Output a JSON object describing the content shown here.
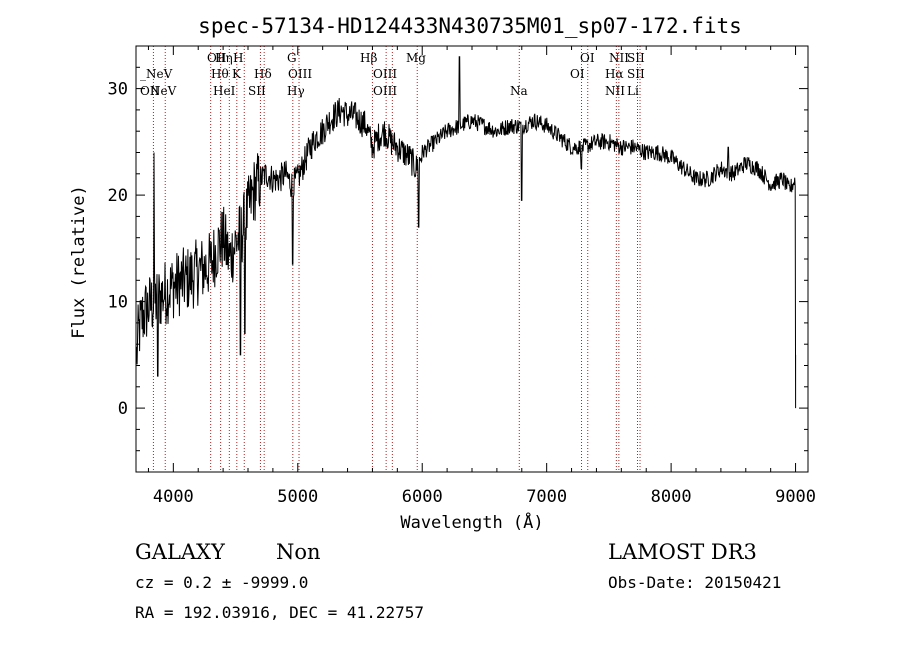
{
  "chart_data": {
    "type": "line",
    "title": "spec-57134-HD124433N430735M01_sp07-172.fits",
    "xlabel": "Wavelength (Å)",
    "ylabel": "Flux (relative)",
    "xlim": [
      3700,
      9100
    ],
    "ylim": [
      -6,
      34
    ],
    "xticks": [
      "4000",
      "5000",
      "6000",
      "7000",
      "8000",
      "9000"
    ],
    "xtick_values": [
      4000,
      5000,
      6000,
      7000,
      8000,
      9000
    ],
    "yticks": [
      "0",
      "10",
      "20",
      "30"
    ],
    "ytick_values": [
      0,
      10,
      20,
      30
    ],
    "line_color": "#000000",
    "marker_color": "#b22222",
    "spectrum_anchors": [
      [
        3700,
        4.0
      ],
      [
        3720,
        7.0
      ],
      [
        3750,
        8.5
      ],
      [
        3800,
        9.5
      ],
      [
        3850,
        10.0
      ],
      [
        3900,
        10.5
      ],
      [
        3950,
        11.0
      ],
      [
        4000,
        11.5
      ],
      [
        4100,
        12.0
      ],
      [
        4200,
        12.8
      ],
      [
        4300,
        13.5
      ],
      [
        4350,
        15.0
      ],
      [
        4400,
        16.0
      ],
      [
        4450,
        14.0
      ],
      [
        4500,
        15.5
      ],
      [
        4550,
        16.5
      ],
      [
        4600,
        18.5
      ],
      [
        4650,
        20.5
      ],
      [
        4700,
        21.5
      ],
      [
        4750,
        22.0
      ],
      [
        4800,
        21.5
      ],
      [
        4850,
        21.5
      ],
      [
        4900,
        22.0
      ],
      [
        4950,
        21.0
      ],
      [
        5000,
        21.5
      ],
      [
        5050,
        23.0
      ],
      [
        5100,
        24.5
      ],
      [
        5150,
        25.5
      ],
      [
        5200,
        26.0
      ],
      [
        5250,
        27.0
      ],
      [
        5300,
        27.5
      ],
      [
        5350,
        28.0
      ],
      [
        5400,
        27.5
      ],
      [
        5450,
        27.5
      ],
      [
        5500,
        27.0
      ],
      [
        5550,
        26.5
      ],
      [
        5600,
        24.5
      ],
      [
        5650,
        25.5
      ],
      [
        5700,
        26.0
      ],
      [
        5750,
        25.0
      ],
      [
        5800,
        24.5
      ],
      [
        5850,
        24.0
      ],
      [
        5900,
        23.5
      ],
      [
        5950,
        22.5
      ],
      [
        6000,
        24.0
      ],
      [
        6100,
        25.0
      ],
      [
        6200,
        26.0
      ],
      [
        6300,
        26.5
      ],
      [
        6400,
        27.0
      ],
      [
        6500,
        26.5
      ],
      [
        6600,
        26.0
      ],
      [
        6700,
        26.5
      ],
      [
        6800,
        26.5
      ],
      [
        6900,
        27.0
      ],
      [
        7000,
        26.5
      ],
      [
        7100,
        25.5
      ],
      [
        7200,
        24.5
      ],
      [
        7300,
        24.5
      ],
      [
        7400,
        25.0
      ],
      [
        7500,
        25.0
      ],
      [
        7600,
        24.5
      ],
      [
        7700,
        24.5
      ],
      [
        7800,
        24.0
      ],
      [
        7900,
        24.0
      ],
      [
        8000,
        23.5
      ],
      [
        8100,
        22.5
      ],
      [
        8200,
        21.5
      ],
      [
        8300,
        21.5
      ],
      [
        8400,
        22.5
      ],
      [
        8500,
        22.0
      ],
      [
        8600,
        23.0
      ],
      [
        8700,
        22.5
      ],
      [
        8800,
        21.0
      ],
      [
        8900,
        21.5
      ],
      [
        8950,
        20.5
      ],
      [
        9000,
        21.5
      ]
    ],
    "spectrum_features": [
      [
        3845,
        24.0
      ],
      [
        3875,
        3.0
      ],
      [
        4540,
        5.0
      ],
      [
        4575,
        7.0
      ],
      [
        4960,
        13.5
      ],
      [
        5970,
        17.0
      ],
      [
        6300,
        33.0
      ],
      [
        6800,
        19.5
      ],
      [
        7280,
        22.5
      ],
      [
        8460,
        24.5
      ]
    ],
    "emission_lines": [
      {
        "name": "NeV",
        "wavelength": 3426,
        "row": 2
      },
      {
        "name": "_NeV",
        "wavelength": 3868,
        "row": 1
      },
      {
        "name": "OII",
        "wavelength": 3727,
        "row": 2
      },
      {
        "name": "OII",
        "wavelength": 4300,
        "row": 0
      },
      {
        "name": "Hη",
        "wavelength": 3836,
        "row": 0
      },
      {
        "name": "H",
        "wavelength": 3969,
        "row": 0
      },
      {
        "name": "Hθ",
        "wavelength": 3798,
        "row": 1
      },
      {
        "name": "K",
        "wavelength": 3934,
        "row": 1
      },
      {
        "name": "HeI",
        "wavelength": 3889,
        "row": 2
      },
      {
        "name": "Hδ",
        "wavelength": 4102,
        "row": 1
      },
      {
        "name": "SII",
        "wavelength": 4072,
        "row": 2
      },
      {
        "name": "G",
        "wavelength": 4304,
        "row": 0
      },
      {
        "name": "OIII",
        "wavelength": 4363,
        "row": 1
      },
      {
        "name": "Hγ",
        "wavelength": 4340,
        "row": 2
      },
      {
        "name": "Hβ",
        "wavelength": 4861,
        "row": 0
      },
      {
        "name": "OIII",
        "wavelength": 4959,
        "row": 1
      },
      {
        "name": "OIII",
        "wavelength": 5007,
        "row": 2
      },
      {
        "name": "Mg",
        "wavelength": 5175,
        "row": 0
      },
      {
        "name": "Na",
        "wavelength": 5893,
        "row": 2
      },
      {
        "name": "OI",
        "wavelength": 6300,
        "row": 0
      },
      {
        "name": "OI",
        "wavelength": 6363,
        "row": 1
      },
      {
        "name": "NII",
        "wavelength": 6548,
        "row": 0
      },
      {
        "name": "Hα",
        "wavelength": 6563,
        "row": 1
      },
      {
        "name": "NII",
        "wavelength": 6583,
        "row": 2
      },
      {
        "name": "SII",
        "wavelength": 6716,
        "row": 0
      },
      {
        "name": "SII",
        "wavelength": 6731,
        "row": 1
      },
      {
        "name": "Li",
        "wavelength": 6708,
        "row": 2
      }
    ],
    "marker_wavelengths": [
      3840,
      3935,
      4300,
      4380,
      4450,
      4510,
      4570,
      4700,
      4730,
      4960,
      5010,
      5600,
      5710,
      5760,
      5960,
      6780,
      7280,
      7330,
      7560,
      7580,
      7730,
      7750
    ]
  },
  "info": {
    "class": "GALAXY",
    "subclass": "Non",
    "survey": "LAMOST DR3",
    "cz": "cz = 0.2 ± -9999.0",
    "obs_date": "Obs-Date: 20150421",
    "radec": "RA = 192.03916, DEC =  41.22757"
  }
}
